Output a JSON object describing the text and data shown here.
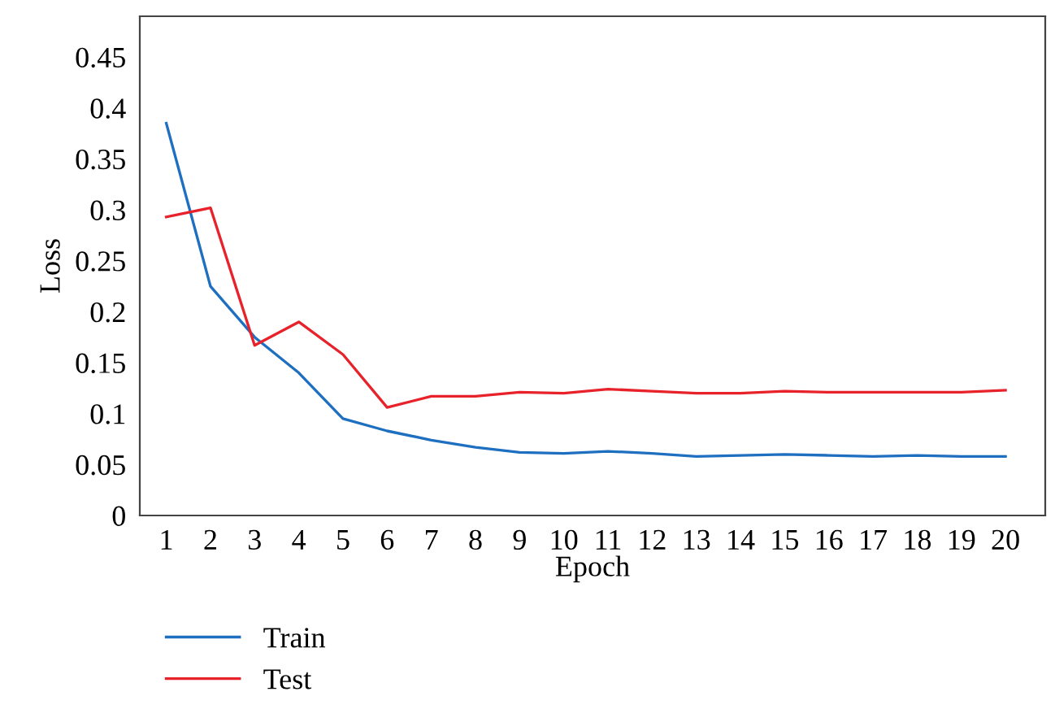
{
  "chart_data": {
    "type": "line",
    "xlabel": "Epoch",
    "ylabel": "Loss",
    "categories": [
      "1",
      "2",
      "3",
      "4",
      "5",
      "6",
      "7",
      "8",
      "9",
      "10",
      "11",
      "12",
      "13",
      "14",
      "15",
      "16",
      "17",
      "18",
      "19",
      "20"
    ],
    "series": [
      {
        "name": "Train",
        "color": "#1f6fc0",
        "values": [
          0.385,
          0.225,
          0.175,
          0.14,
          0.095,
          0.083,
          0.074,
          0.067,
          0.062,
          0.061,
          0.063,
          0.061,
          0.058,
          0.059,
          0.06,
          0.059,
          0.058,
          0.059,
          0.058,
          0.058
        ]
      },
      {
        "name": "Test",
        "color": "#e8222b",
        "values": [
          0.293,
          0.302,
          0.167,
          0.19,
          0.158,
          0.106,
          0.117,
          0.117,
          0.121,
          0.12,
          0.124,
          0.122,
          0.12,
          0.12,
          0.122,
          0.121,
          0.121,
          0.121,
          0.121,
          0.123
        ]
      }
    ],
    "ylim": [
      0,
      0.49
    ],
    "yticks": [
      {
        "value": 0,
        "label": "0"
      },
      0.05,
      0.1,
      0.15,
      0.2,
      0.25,
      0.3,
      0.35,
      0.4,
      0.45
    ],
    "grid": false,
    "legend": "bottom left",
    "marker": "none",
    "line_style": "solid"
  }
}
